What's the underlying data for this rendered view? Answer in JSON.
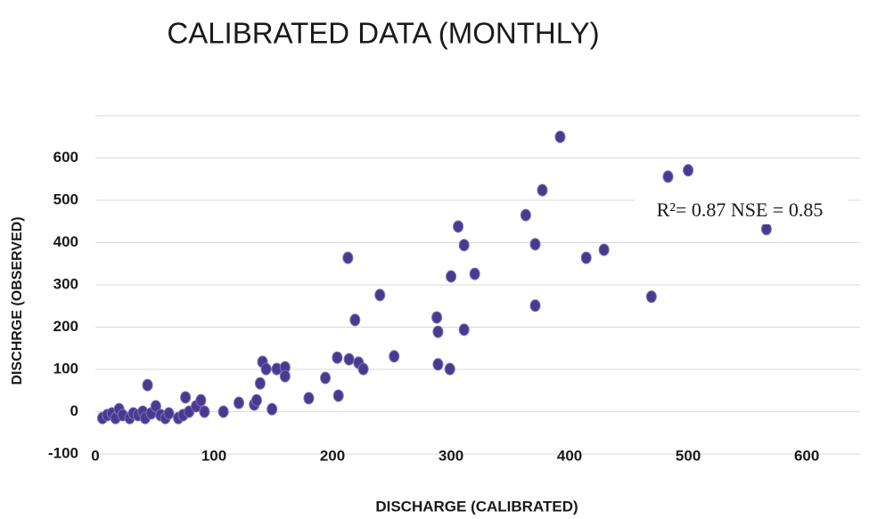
{
  "chart_data": {
    "type": "scatter",
    "title": "CALIBRATED DATA (MONTHLY)",
    "x_label": "DISCHARGE (CALIBRATED)",
    "y_label": "DISCHRGE (OBSERVED)",
    "annotation": "R²= 0.87 NSE = 0.85",
    "color": "#4a3a8e",
    "xlim": [
      0,
      645
    ],
    "xticks": [
      0,
      100,
      200,
      300,
      400,
      500,
      600
    ],
    "ylim": [
      -100,
      700
    ],
    "yticks": [
      -100,
      0,
      100,
      200,
      300,
      400,
      500,
      600
    ],
    "grid": true,
    "x": [
      6,
      10,
      14,
      17,
      20,
      23,
      29,
      32,
      36,
      40,
      42,
      44,
      47,
      51,
      55,
      59,
      62,
      70,
      74,
      76,
      79,
      85,
      89,
      92,
      108,
      121,
      134,
      136,
      139,
      141,
      144,
      149,
      153,
      160,
      160,
      180,
      194,
      204,
      205,
      213,
      214,
      219,
      222,
      226,
      240,
      252,
      288,
      289,
      289,
      299,
      300,
      306,
      311,
      311,
      320,
      363,
      371,
      371,
      377,
      392,
      414,
      429,
      469,
      483,
      500,
      566
    ],
    "values": [
      -15,
      -8,
      -4,
      -15,
      6,
      -8,
      -15,
      -4,
      -8,
      0,
      -15,
      63,
      -4,
      13,
      -8,
      -15,
      -4,
      -15,
      -8,
      34,
      0,
      13,
      27,
      0,
      0,
      21,
      17,
      27,
      67,
      118,
      101,
      6,
      101,
      105,
      84,
      32,
      80,
      128,
      38,
      364,
      124,
      217,
      116,
      101,
      276,
      131,
      223,
      189,
      112,
      101,
      320,
      438,
      394,
      194,
      326,
      465,
      396,
      251,
      524,
      650,
      364,
      383,
      272,
      556,
      571,
      432
    ]
  }
}
